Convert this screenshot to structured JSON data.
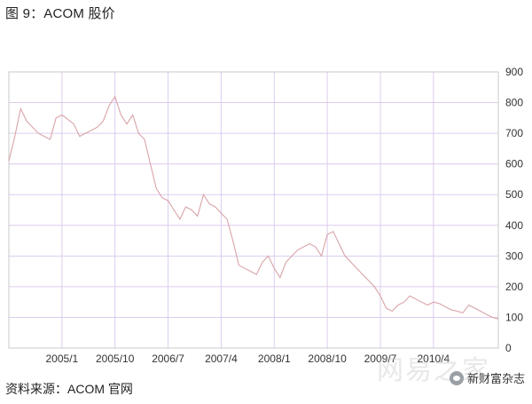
{
  "title": "图 9：ACOM 股价",
  "source": "资料来源：ACOM 官网",
  "badge": {
    "icon": "wechat-icon",
    "text": "新财富杂志"
  },
  "watermark": "网易之家",
  "colors": {
    "line": "#d9a3a8",
    "grid": "#ddccee",
    "frame": "#c9c9c9",
    "background": "#ffffff"
  },
  "chart_data": {
    "type": "line",
    "title": "",
    "xlabel": "",
    "ylabel": "",
    "ylim": [
      0,
      900
    ],
    "yticks": [
      0,
      100,
      200,
      300,
      400,
      500,
      600,
      700,
      800,
      900
    ],
    "xlim": [
      "2004-04",
      "2011-03"
    ],
    "xticks": [
      "2005/1",
      "2005/10",
      "2006/7",
      "2007/4",
      "2008/1",
      "2008/10",
      "2009/7",
      "2010/4"
    ],
    "grid": true,
    "legend": "none",
    "series": [
      {
        "x": [
          "2004-04",
          "2004-05",
          "2004-06",
          "2004-07",
          "2004-08",
          "2004-09",
          "2004-10",
          "2004-11",
          "2004-12",
          "2005-01",
          "2005-02",
          "2005-03",
          "2005-04",
          "2005-05",
          "2005-06",
          "2005-07",
          "2005-08",
          "2005-09",
          "2005-10",
          "2005-11",
          "2005-12",
          "2006-01",
          "2006-02",
          "2006-03",
          "2006-04",
          "2006-05",
          "2006-06",
          "2006-07",
          "2006-08",
          "2006-09",
          "2006-10",
          "2006-11",
          "2006-12",
          "2007-01",
          "2007-02",
          "2007-03",
          "2007-04",
          "2007-05",
          "2007-06",
          "2007-07",
          "2007-08",
          "2007-09",
          "2007-10",
          "2007-11",
          "2007-12",
          "2008-01",
          "2008-02",
          "2008-03",
          "2008-04",
          "2008-05",
          "2008-06",
          "2008-07",
          "2008-08",
          "2008-09",
          "2008-10",
          "2008-11",
          "2008-12",
          "2009-01",
          "2009-02",
          "2009-03",
          "2009-04",
          "2009-05",
          "2009-06",
          "2009-07",
          "2009-08",
          "2009-09",
          "2009-10",
          "2009-11",
          "2009-12",
          "2010-01",
          "2010-02",
          "2010-03",
          "2010-04",
          "2010-05",
          "2010-06",
          "2010-07",
          "2010-08",
          "2010-09",
          "2010-10",
          "2010-11",
          "2010-12",
          "2011-01",
          "2011-02",
          "2011-03"
        ],
        "values": [
          610,
          690,
          780,
          740,
          720,
          700,
          690,
          680,
          750,
          760,
          745,
          730,
          690,
          700,
          710,
          720,
          740,
          790,
          820,
          760,
          730,
          760,
          700,
          680,
          600,
          520,
          490,
          480,
          450,
          420,
          460,
          450,
          430,
          500,
          470,
          460,
          440,
          420,
          350,
          270,
          260,
          250,
          240,
          280,
          300,
          260,
          230,
          280,
          300,
          320,
          330,
          340,
          330,
          300,
          370,
          380,
          340,
          300,
          280,
          260,
          240,
          220,
          200,
          170,
          130,
          120,
          140,
          150,
          170,
          160,
          150,
          140,
          150,
          145,
          135,
          125,
          120,
          115,
          140,
          130,
          120,
          110,
          100,
          95
        ]
      }
    ]
  }
}
